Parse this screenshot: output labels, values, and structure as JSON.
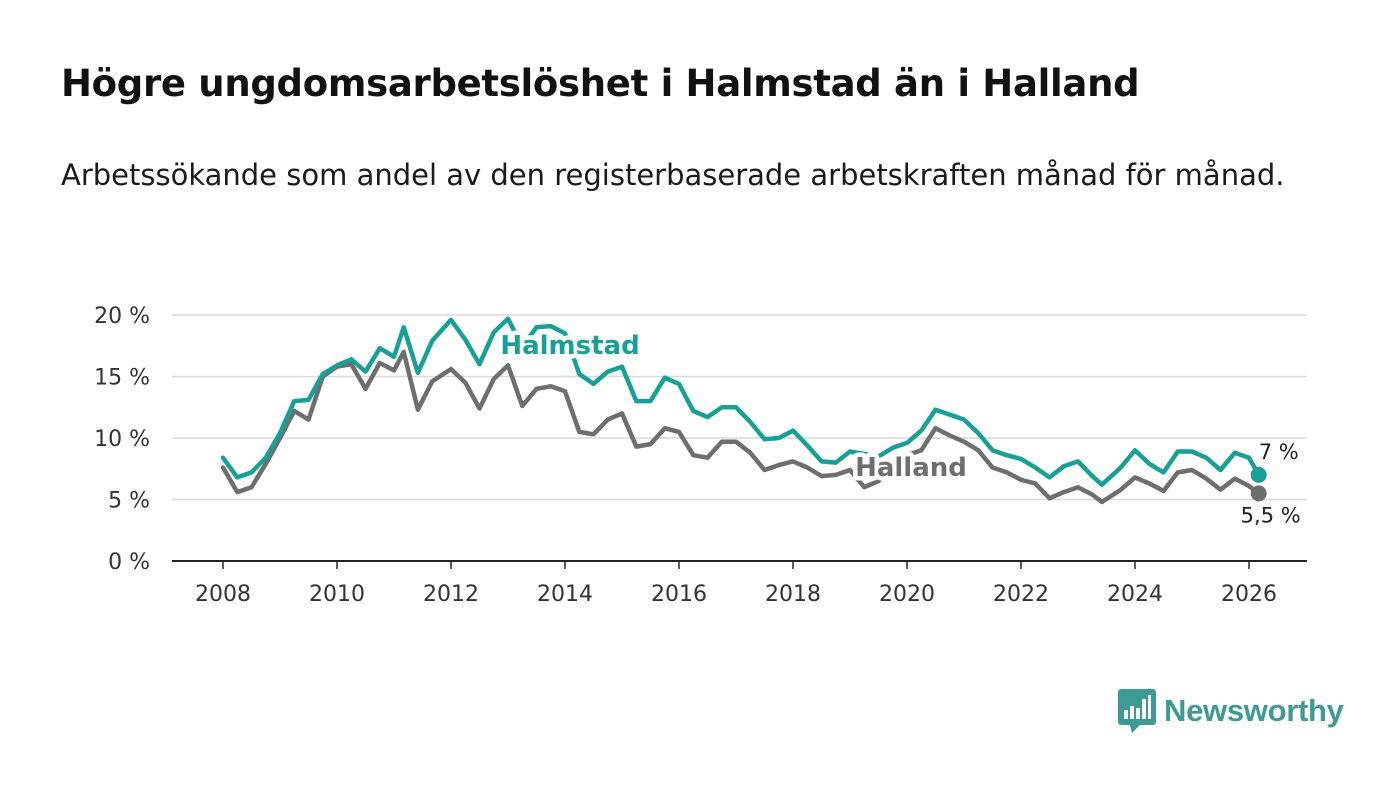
{
  "title": "Högre ungdomsarbetslöshet i Halmstad än i Halland",
  "subtitle": "Arbetssökande som andel av den registerbaserade arbetskraften månad för månad.",
  "brand": {
    "name": "Newsworthy",
    "color": "#3d9b94"
  },
  "chart_data": {
    "type": "line",
    "title": "Högre ungdomsarbetslöshet i Halmstad än i Halland",
    "xlabel": "",
    "ylabel": "",
    "xlim": [
      2007.1,
      2027.1
    ],
    "ylim": [
      0,
      20
    ],
    "grid": true,
    "x_ticks": [
      2008,
      2010,
      2012,
      2014,
      2016,
      2018,
      2020,
      2022,
      2024,
      2026
    ],
    "x_tick_labels": [
      "2008",
      "2010",
      "2012",
      "2014",
      "2016",
      "2018",
      "2020",
      "2022",
      "2024",
      "2026"
    ],
    "y_ticks": [
      0,
      5,
      10,
      15,
      20
    ],
    "y_tick_labels": [
      "0 %",
      "5 %",
      "10 %",
      "15 %",
      "20 %"
    ],
    "series": [
      {
        "name": "Halmstad",
        "label": "Halmstad",
        "color": "#17a096",
        "end_label": "7 %",
        "end_value": 7.0,
        "points": [
          [
            2008.0,
            8.4
          ],
          [
            2008.25,
            6.8
          ],
          [
            2008.5,
            7.2
          ],
          [
            2008.75,
            8.4
          ],
          [
            2009.0,
            10.4
          ],
          [
            2009.25,
            13.0
          ],
          [
            2009.5,
            13.1
          ],
          [
            2009.75,
            15.2
          ],
          [
            2010.0,
            15.9
          ],
          [
            2010.25,
            16.4
          ],
          [
            2010.5,
            15.4
          ],
          [
            2010.75,
            17.3
          ],
          [
            2011.0,
            16.6
          ],
          [
            2011.17,
            19.0
          ],
          [
            2011.42,
            15.3
          ],
          [
            2011.67,
            17.9
          ],
          [
            2012.0,
            19.6
          ],
          [
            2012.25,
            18.0
          ],
          [
            2012.5,
            16.0
          ],
          [
            2012.75,
            18.6
          ],
          [
            2013.0,
            19.7
          ],
          [
            2013.25,
            17.4
          ],
          [
            2013.5,
            19.0
          ],
          [
            2013.75,
            19.1
          ],
          [
            2014.0,
            18.5
          ],
          [
            2014.25,
            15.2
          ],
          [
            2014.5,
            14.4
          ],
          [
            2014.75,
            15.4
          ],
          [
            2015.0,
            15.8
          ],
          [
            2015.25,
            13.0
          ],
          [
            2015.5,
            13.0
          ],
          [
            2015.75,
            14.9
          ],
          [
            2016.0,
            14.4
          ],
          [
            2016.25,
            12.2
          ],
          [
            2016.5,
            11.7
          ],
          [
            2016.75,
            12.5
          ],
          [
            2017.0,
            12.5
          ],
          [
            2017.25,
            11.3
          ],
          [
            2017.5,
            9.9
          ],
          [
            2017.75,
            10.0
          ],
          [
            2018.0,
            10.6
          ],
          [
            2018.25,
            9.4
          ],
          [
            2018.5,
            8.1
          ],
          [
            2018.75,
            8.0
          ],
          [
            2019.0,
            8.9
          ],
          [
            2019.25,
            8.7
          ],
          [
            2019.5,
            8.5
          ],
          [
            2019.75,
            9.2
          ],
          [
            2020.0,
            9.6
          ],
          [
            2020.25,
            10.6
          ],
          [
            2020.5,
            12.3
          ],
          [
            2020.75,
            11.9
          ],
          [
            2021.0,
            11.5
          ],
          [
            2021.25,
            10.4
          ],
          [
            2021.5,
            9.0
          ],
          [
            2021.75,
            8.6
          ],
          [
            2022.0,
            8.3
          ],
          [
            2022.25,
            7.6
          ],
          [
            2022.5,
            6.8
          ],
          [
            2022.75,
            7.7
          ],
          [
            2023.0,
            8.1
          ],
          [
            2023.25,
            6.9
          ],
          [
            2023.42,
            6.2
          ],
          [
            2023.75,
            7.6
          ],
          [
            2024.0,
            9.0
          ],
          [
            2024.25,
            7.9
          ],
          [
            2024.5,
            7.2
          ],
          [
            2024.75,
            8.9
          ],
          [
            2025.0,
            8.9
          ],
          [
            2025.25,
            8.4
          ],
          [
            2025.5,
            7.4
          ],
          [
            2025.75,
            8.8
          ],
          [
            2026.0,
            8.4
          ],
          [
            2026.17,
            7.0
          ]
        ]
      },
      {
        "name": "Halland",
        "label": "Halland",
        "color": "#6e6e6e",
        "end_label": "5,5 %",
        "end_value": 5.5,
        "points": [
          [
            2008.0,
            7.6
          ],
          [
            2008.25,
            5.6
          ],
          [
            2008.5,
            6.0
          ],
          [
            2008.75,
            7.9
          ],
          [
            2009.0,
            10.0
          ],
          [
            2009.25,
            12.2
          ],
          [
            2009.5,
            11.5
          ],
          [
            2009.75,
            15.0
          ],
          [
            2010.0,
            15.8
          ],
          [
            2010.25,
            16.0
          ],
          [
            2010.5,
            14.0
          ],
          [
            2010.75,
            16.1
          ],
          [
            2011.0,
            15.5
          ],
          [
            2011.17,
            17.0
          ],
          [
            2011.42,
            12.3
          ],
          [
            2011.67,
            14.6
          ],
          [
            2012.0,
            15.6
          ],
          [
            2012.25,
            14.5
          ],
          [
            2012.5,
            12.4
          ],
          [
            2012.75,
            14.8
          ],
          [
            2013.0,
            15.9
          ],
          [
            2013.25,
            12.6
          ],
          [
            2013.5,
            14.0
          ],
          [
            2013.75,
            14.2
          ],
          [
            2014.0,
            13.8
          ],
          [
            2014.25,
            10.5
          ],
          [
            2014.5,
            10.3
          ],
          [
            2014.75,
            11.5
          ],
          [
            2015.0,
            12.0
          ],
          [
            2015.25,
            9.3
          ],
          [
            2015.5,
            9.5
          ],
          [
            2015.75,
            10.8
          ],
          [
            2016.0,
            10.5
          ],
          [
            2016.25,
            8.6
          ],
          [
            2016.5,
            8.4
          ],
          [
            2016.75,
            9.7
          ],
          [
            2017.0,
            9.7
          ],
          [
            2017.25,
            8.8
          ],
          [
            2017.5,
            7.4
          ],
          [
            2017.75,
            7.8
          ],
          [
            2018.0,
            8.1
          ],
          [
            2018.25,
            7.6
          ],
          [
            2018.5,
            6.9
          ],
          [
            2018.75,
            7.0
          ],
          [
            2019.0,
            7.4
          ],
          [
            2019.25,
            6.0
          ],
          [
            2019.5,
            6.5
          ],
          [
            2019.75,
            7.8
          ],
          [
            2020.0,
            8.6
          ],
          [
            2020.25,
            9.0
          ],
          [
            2020.5,
            10.8
          ],
          [
            2020.75,
            10.2
          ],
          [
            2021.0,
            9.7
          ],
          [
            2021.25,
            9.0
          ],
          [
            2021.5,
            7.6
          ],
          [
            2021.75,
            7.2
          ],
          [
            2022.0,
            6.6
          ],
          [
            2022.25,
            6.3
          ],
          [
            2022.5,
            5.1
          ],
          [
            2022.75,
            5.6
          ],
          [
            2023.0,
            6.0
          ],
          [
            2023.25,
            5.4
          ],
          [
            2023.42,
            4.8
          ],
          [
            2023.75,
            5.8
          ],
          [
            2024.0,
            6.8
          ],
          [
            2024.25,
            6.3
          ],
          [
            2024.5,
            5.7
          ],
          [
            2024.75,
            7.2
          ],
          [
            2025.0,
            7.4
          ],
          [
            2025.25,
            6.7
          ],
          [
            2025.5,
            5.8
          ],
          [
            2025.75,
            6.7
          ],
          [
            2026.0,
            6.1
          ],
          [
            2026.17,
            5.5
          ]
        ]
      }
    ]
  }
}
